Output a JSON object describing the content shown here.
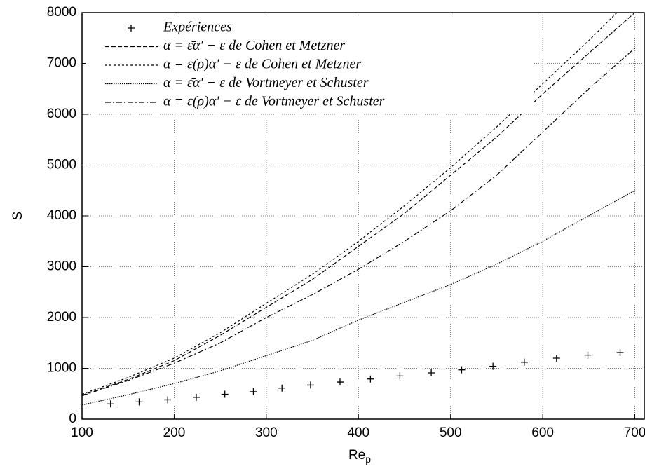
{
  "chart_data": {
    "type": "line",
    "xlabel": "Re",
    "xlabel_subscript": "p",
    "ylabel": "S",
    "xlim": [
      100,
      711
    ],
    "ylim": [
      0,
      8000
    ],
    "xticks": [
      100,
      200,
      300,
      400,
      500,
      600,
      700
    ],
    "yticks": [
      0,
      1000,
      2000,
      3000,
      4000,
      5000,
      6000,
      7000,
      8000
    ],
    "grid": true,
    "legend": "upper left",
    "series": [
      {
        "name": "Expériences",
        "type": "scatter",
        "color": "#000000",
        "x": [
          131,
          162,
          193,
          224,
          255,
          286,
          317,
          348,
          380,
          413,
          445,
          479,
          512,
          546,
          580,
          615,
          649,
          684
        ],
        "values": [
          300,
          340,
          380,
          430,
          490,
          540,
          610,
          670,
          730,
          790,
          850,
          910,
          970,
          1040,
          1120,
          1200,
          1260,
          1310
        ]
      },
      {
        "name": "α = ε̄α′ − ε de Cohen et Metzner",
        "type": "line",
        "dash": "6,3",
        "color": "#000000",
        "x": [
          100,
          150,
          200,
          250,
          300,
          350,
          400,
          450,
          500,
          550,
          600,
          650,
          700
        ],
        "values": [
          470,
          780,
          1150,
          1650,
          2200,
          2750,
          3400,
          4050,
          4800,
          5550,
          6400,
          7200,
          8000
        ]
      },
      {
        "name": "α = ε(ρ)α′ − ε de Cohen et Metzner",
        "type": "line",
        "dash": "3,3",
        "color": "#000000",
        "x": [
          100,
          150,
          200,
          250,
          300,
          350,
          400,
          450,
          500,
          550,
          600,
          650,
          700
        ],
        "values": [
          490,
          820,
          1200,
          1700,
          2280,
          2850,
          3500,
          4200,
          4950,
          5750,
          6600,
          7450,
          8350
        ]
      },
      {
        "name": "α = ε̄α′ − ε de Vortmeyer et Schuster",
        "type": "line",
        "dash": "1.5,1.5",
        "color": "#000000",
        "x": [
          100,
          150,
          200,
          250,
          300,
          350,
          400,
          450,
          500,
          550,
          600,
          650,
          700
        ],
        "values": [
          280,
          480,
          700,
          950,
          1250,
          1550,
          1950,
          2300,
          2650,
          3050,
          3500,
          4000,
          4500
        ]
      },
      {
        "name": "α = ε(ρ)α′ − ε de Vortmeyer et Schuster",
        "type": "line",
        "dash": "8,3,2,3",
        "color": "#000000",
        "x": [
          100,
          150,
          200,
          250,
          300,
          350,
          400,
          450,
          500,
          550,
          600,
          650,
          700
        ],
        "values": [
          460,
          760,
          1100,
          1500,
          2000,
          2450,
          2950,
          3500,
          4100,
          4800,
          5650,
          6500,
          7300
        ]
      }
    ]
  }
}
